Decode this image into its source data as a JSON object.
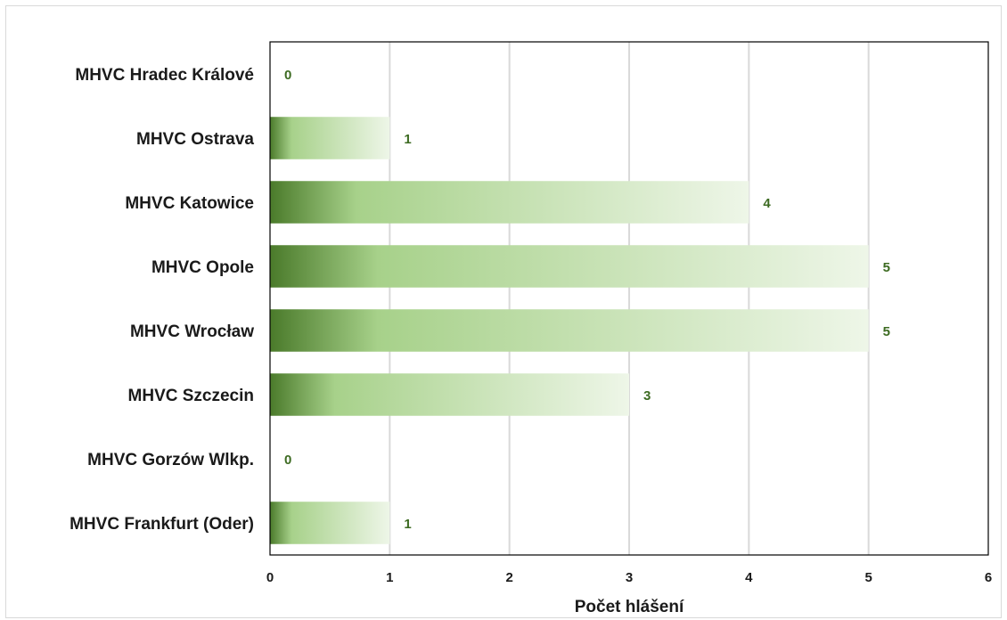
{
  "chart_data": {
    "type": "bar",
    "orientation": "horizontal",
    "categories": [
      "MHVC Hradec Králové",
      "MHVC Ostrava",
      "MHVC Katowice",
      "MHVC Opole",
      "MHVC Wrocław",
      "MHVC Szczecin",
      "MHVC Gorzów Wlkp.",
      "MHVC Frankfurt (Oder)"
    ],
    "values": [
      0,
      1,
      4,
      5,
      5,
      3,
      0,
      1
    ],
    "title": "",
    "xlabel": "Počet hlášení",
    "ylabel": "",
    "xlim": [
      0,
      6
    ],
    "xticks": [
      "0",
      "1",
      "2",
      "3",
      "4",
      "5",
      "6"
    ],
    "grid": "vertical",
    "legend": "none",
    "data_labels": true
  },
  "colors": {
    "bar_dark": "#4a7a2a",
    "bar_mid": "#a7d18a",
    "bar_light": "#eef6e8",
    "data_label": "#3d6b22",
    "grid": "#d9d9d9",
    "axis_border": "#000000"
  }
}
